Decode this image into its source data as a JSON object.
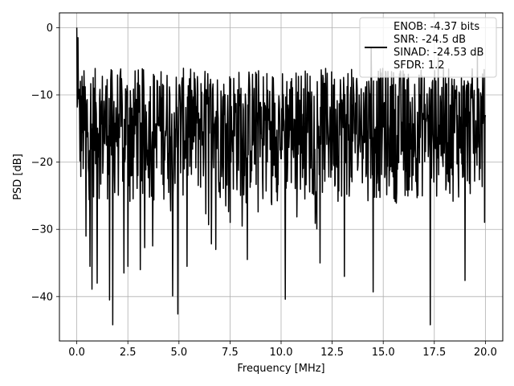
{
  "chart_data": {
    "type": "line",
    "xlabel": "Frequency [MHz]",
    "ylabel": "PSD [dB]",
    "xlim": [
      -0.85,
      20.85
    ],
    "ylim": [
      -46.6,
      2.2
    ],
    "xticks": [
      0.0,
      2.5,
      5.0,
      7.5,
      10.0,
      12.5,
      15.0,
      17.5,
      20.0
    ],
    "xtick_labels": [
      "0.0",
      "2.5",
      "5.0",
      "7.5",
      "10.0",
      "12.5",
      "15.0",
      "17.5",
      "20.0"
    ],
    "yticks": [
      0,
      -10,
      -20,
      -30,
      -40
    ],
    "ytick_labels": [
      "0",
      "−10",
      "−20",
      "−30",
      "−40"
    ],
    "grid": true,
    "legend_position": "top-right",
    "legend_lines": [
      "ENOB: -4.37 bits",
      "SNR: -24.5 dB",
      "SINAD: -24.53 dB",
      "SFDR: 1.2"
    ],
    "series": [
      {
        "color": "#000000",
        "description": "dense noisy PSD trace",
        "x_range": [
          0.0,
          20.0
        ],
        "points": 1024,
        "typical_top": -6,
        "typical_bottom": -26,
        "dips": [
          {
            "x": 0.45,
            "y": -31
          },
          {
            "x": 0.65,
            "y": -35.5
          },
          {
            "x": 0.75,
            "y": -38.9
          },
          {
            "x": 1.0,
            "y": -38.0
          },
          {
            "x": 1.6,
            "y": -40.5
          },
          {
            "x": 1.75,
            "y": -44.2
          },
          {
            "x": 2.3,
            "y": -36.5
          },
          {
            "x": 2.5,
            "y": -35.5
          },
          {
            "x": 3.1,
            "y": -36.0
          },
          {
            "x": 4.7,
            "y": -39.9
          },
          {
            "x": 4.95,
            "y": -42.6
          },
          {
            "x": 5.4,
            "y": -35.5
          },
          {
            "x": 6.8,
            "y": -33.0
          },
          {
            "x": 10.2,
            "y": -40.4
          },
          {
            "x": 11.9,
            "y": -35.0
          },
          {
            "x": 13.1,
            "y": -37.0
          },
          {
            "x": 14.5,
            "y": -39.3
          },
          {
            "x": 17.3,
            "y": -44.2
          },
          {
            "x": 19.0,
            "y": -37.6
          }
        ],
        "peaks": [
          {
            "x": 0.0,
            "y": 0.0
          },
          {
            "x": 0.05,
            "y": -1.5
          },
          {
            "x": 14.4,
            "y": -3.0
          },
          {
            "x": 17.7,
            "y": -4.5
          },
          {
            "x": 19.6,
            "y": -4.0
          },
          {
            "x": 20.0,
            "y": -13.0
          }
        ]
      }
    ]
  }
}
